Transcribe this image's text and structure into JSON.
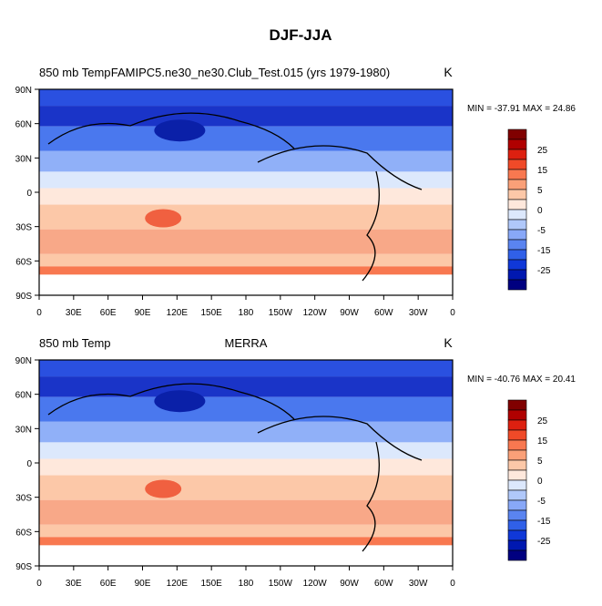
{
  "title": "DJF-JJA",
  "panels": [
    {
      "left_title": "850 mb Temp",
      "center_title": "FAMIPC5.ne30_ne30.Club_Test.015 (yrs 1979-1980)",
      "units": "K",
      "stats": "MIN = -37.91 MAX =  24.86",
      "x_labels": [
        "0",
        "30E",
        "60E",
        "90E",
        "120E",
        "150E",
        "180",
        "150W",
        "120W",
        "90W",
        "60W",
        "30W",
        "0"
      ],
      "y_labels": [
        "90N",
        "60N",
        "30N",
        "0",
        "30S",
        "60S",
        "90S"
      ],
      "colorbar_labels": [
        "25",
        "15",
        "5",
        "0",
        "-5",
        "-15",
        "-25"
      ]
    },
    {
      "left_title": "850 mb Temp",
      "center_title": "MERRA",
      "units": "K",
      "stats": "MIN = -40.76 MAX = 20.41",
      "x_labels": [
        "0",
        "30E",
        "60E",
        "90E",
        "120E",
        "150E",
        "180",
        "150W",
        "120W",
        "90W",
        "60W",
        "30W",
        "0"
      ],
      "y_labels": [
        "90N",
        "60N",
        "30N",
        "0",
        "30S",
        "60S",
        "90S"
      ],
      "colorbar_labels": [
        "25",
        "15",
        "5",
        "0",
        "-5",
        "-15",
        "-25"
      ]
    }
  ]
}
